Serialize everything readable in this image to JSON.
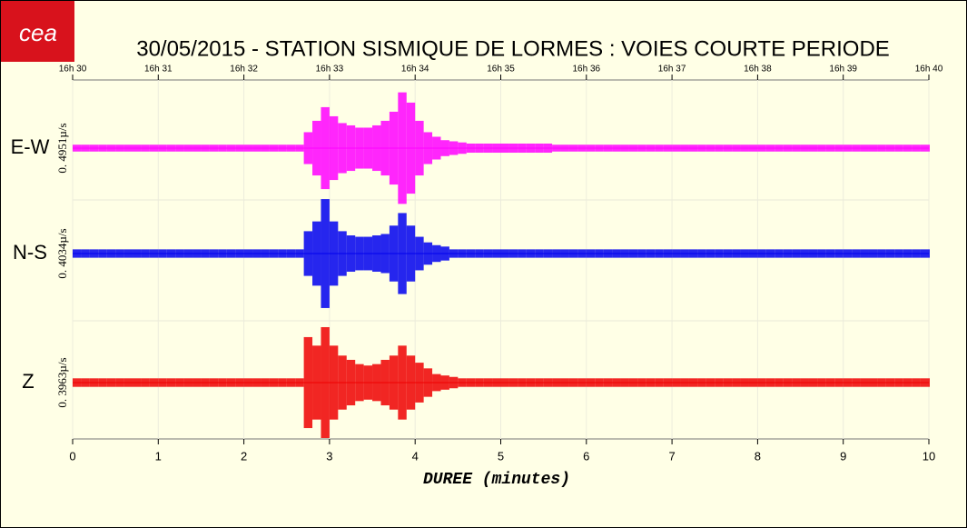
{
  "chart_data": {
    "type": "seismogram",
    "title": "30/05/2015  -  STATION SISMIQUE DE LORMES : VOIES COURTE PERIODE",
    "logo": "cea",
    "x_label": "DUREE (minutes)",
    "xlim": [
      0,
      10
    ],
    "xticks": [
      0,
      1,
      2,
      3,
      4,
      5,
      6,
      7,
      8,
      9,
      10
    ],
    "x2ticks": [
      {
        "value": 0,
        "label": "16h 30"
      },
      {
        "value": 1,
        "label": "16h 31"
      },
      {
        "value": 2,
        "label": "16h 32"
      },
      {
        "value": 3,
        "label": "16h 33"
      },
      {
        "value": 4,
        "label": "16h 34"
      },
      {
        "value": 5,
        "label": "16h 35"
      },
      {
        "value": 6,
        "label": "16h 36"
      },
      {
        "value": 7,
        "label": "16h 37"
      },
      {
        "value": 8,
        "label": "16h 38"
      },
      {
        "value": 9,
        "label": "16h 39"
      },
      {
        "value": 10,
        "label": "16h 40"
      }
    ],
    "grid": true,
    "x": [
      0,
      0.1,
      0.2,
      0.3,
      0.4,
      0.5,
      0.6,
      0.7,
      0.8,
      0.9,
      1,
      1.1,
      1.2,
      1.3,
      1.4,
      1.5,
      1.6,
      1.7,
      1.8,
      1.9,
      2,
      2.1,
      2.2,
      2.3,
      2.4,
      2.5,
      2.6,
      2.7,
      2.8,
      2.9,
      3,
      3.1,
      3.2,
      3.3,
      3.4,
      3.5,
      3.6,
      3.7,
      3.8,
      3.9,
      4,
      4.1,
      4.2,
      4.3,
      4.4,
      4.5,
      4.6,
      4.7,
      4.8,
      4.9,
      5,
      5.1,
      5.2,
      5.3,
      5.4,
      5.5,
      5.6,
      5.7,
      5.8,
      5.9,
      6,
      6.1,
      6.2,
      6.3,
      6.4,
      6.5,
      6.6,
      6.7,
      6.8,
      6.9,
      7,
      7.1,
      7.2,
      7.3,
      7.4,
      7.5,
      7.6,
      7.7,
      7.8,
      7.9,
      8,
      8.1,
      8.2,
      8.3,
      8.4,
      8.5,
      8.6,
      8.7,
      8.8,
      8.9,
      9,
      9.1,
      9.2,
      9.3,
      9.4,
      9.5,
      9.6,
      9.7,
      9.8,
      9.9,
      10
    ],
    "series": [
      {
        "name": "E-W",
        "color": "#ff00ff",
        "scale": {
          "value": 0.4951,
          "label": "0. 4951µ/s"
        },
        "values": [
          0.03,
          0.03,
          0.03,
          0.03,
          0.03,
          0.03,
          0.03,
          0.03,
          0.03,
          0.03,
          0.03,
          0.03,
          0.03,
          0.03,
          0.03,
          0.03,
          0.03,
          0.03,
          0.03,
          0.03,
          0.03,
          0.03,
          0.03,
          0.03,
          0.03,
          0.03,
          0.03,
          0.14,
          0.24,
          0.36,
          0.28,
          0.22,
          0.2,
          0.18,
          0.18,
          0.2,
          0.24,
          0.32,
          0.49,
          0.4,
          0.24,
          0.14,
          0.1,
          0.07,
          0.06,
          0.05,
          0.04,
          0.04,
          0.04,
          0.04,
          0.04,
          0.04,
          0.04,
          0.04,
          0.04,
          0.04,
          0.03,
          0.03,
          0.03,
          0.03,
          0.03,
          0.03,
          0.03,
          0.03,
          0.03,
          0.03,
          0.03,
          0.03,
          0.03,
          0.03,
          0.03,
          0.03,
          0.03,
          0.03,
          0.03,
          0.03,
          0.03,
          0.03,
          0.03,
          0.03,
          0.03,
          0.03,
          0.03,
          0.03,
          0.03,
          0.03,
          0.03,
          0.03,
          0.03,
          0.03,
          0.03,
          0.03,
          0.03,
          0.03,
          0.03,
          0.03,
          0.03,
          0.03,
          0.03,
          0.03,
          0.03
        ]
      },
      {
        "name": "N-S",
        "color": "#0000ee",
        "scale": {
          "value": 0.4034,
          "label": "0. 4034µ/s"
        },
        "values": [
          0.03,
          0.03,
          0.03,
          0.03,
          0.03,
          0.03,
          0.03,
          0.03,
          0.03,
          0.03,
          0.03,
          0.03,
          0.03,
          0.03,
          0.03,
          0.03,
          0.03,
          0.03,
          0.03,
          0.03,
          0.03,
          0.03,
          0.03,
          0.03,
          0.03,
          0.03,
          0.03,
          0.16,
          0.23,
          0.39,
          0.23,
          0.16,
          0.13,
          0.12,
          0.12,
          0.13,
          0.14,
          0.2,
          0.29,
          0.2,
          0.12,
          0.08,
          0.06,
          0.05,
          0.03,
          0.03,
          0.03,
          0.03,
          0.03,
          0.03,
          0.03,
          0.03,
          0.03,
          0.03,
          0.03,
          0.03,
          0.03,
          0.03,
          0.03,
          0.03,
          0.03,
          0.03,
          0.03,
          0.03,
          0.03,
          0.03,
          0.03,
          0.03,
          0.03,
          0.03,
          0.03,
          0.03,
          0.03,
          0.03,
          0.03,
          0.03,
          0.03,
          0.03,
          0.03,
          0.03,
          0.03,
          0.03,
          0.03,
          0.03,
          0.03,
          0.03,
          0.03,
          0.03,
          0.03,
          0.03,
          0.03,
          0.03,
          0.03,
          0.03,
          0.03,
          0.03,
          0.03,
          0.03,
          0.03,
          0.03,
          0.03
        ]
      },
      {
        "name": "Z",
        "color": "#ee0000",
        "scale": {
          "value": 0.3963,
          "label": "0. 3963µ/s"
        },
        "values": [
          0.03,
          0.03,
          0.03,
          0.03,
          0.03,
          0.03,
          0.03,
          0.03,
          0.03,
          0.03,
          0.03,
          0.03,
          0.03,
          0.03,
          0.03,
          0.03,
          0.03,
          0.03,
          0.03,
          0.03,
          0.03,
          0.03,
          0.03,
          0.03,
          0.03,
          0.03,
          0.03,
          0.32,
          0.26,
          0.39,
          0.26,
          0.19,
          0.16,
          0.13,
          0.12,
          0.13,
          0.16,
          0.19,
          0.26,
          0.19,
          0.14,
          0.1,
          0.06,
          0.05,
          0.04,
          0.03,
          0.03,
          0.03,
          0.03,
          0.03,
          0.03,
          0.03,
          0.03,
          0.03,
          0.03,
          0.03,
          0.03,
          0.03,
          0.03,
          0.03,
          0.03,
          0.03,
          0.03,
          0.03,
          0.03,
          0.03,
          0.03,
          0.03,
          0.03,
          0.03,
          0.03,
          0.03,
          0.03,
          0.03,
          0.03,
          0.03,
          0.03,
          0.03,
          0.03,
          0.03,
          0.03,
          0.03,
          0.03,
          0.03,
          0.03,
          0.03,
          0.03,
          0.03,
          0.03,
          0.03,
          0.03,
          0.03,
          0.03,
          0.03,
          0.03,
          0.03,
          0.03,
          0.03,
          0.03,
          0.03,
          0.03
        ]
      }
    ]
  }
}
